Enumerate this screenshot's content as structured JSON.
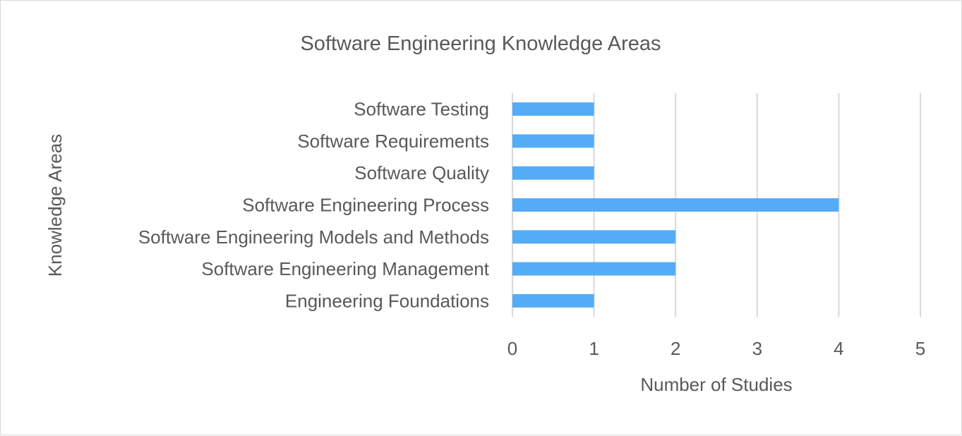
{
  "chart_data": {
    "type": "bar",
    "orientation": "horizontal",
    "title": "Software Engineering Knowledge Areas",
    "xlabel": "Number of Studies",
    "ylabel": "Knowledge Areas",
    "categories": [
      "Software Testing",
      "Software Requirements",
      "Software Quality",
      "Software Engineering Process",
      "Software Engineering Models and Methods",
      "Software Engineering Management",
      "Engineering Foundations"
    ],
    "values": [
      1,
      1,
      1,
      4,
      2,
      2,
      1
    ],
    "xlim": [
      0,
      5
    ],
    "xticks": [
      "0",
      "1",
      "2",
      "3",
      "4",
      "5"
    ],
    "grid": "vertical",
    "legend": "none",
    "bar_color": "#55acf6",
    "grid_color": "#d9d9d9",
    "text_color": "#595959"
  }
}
